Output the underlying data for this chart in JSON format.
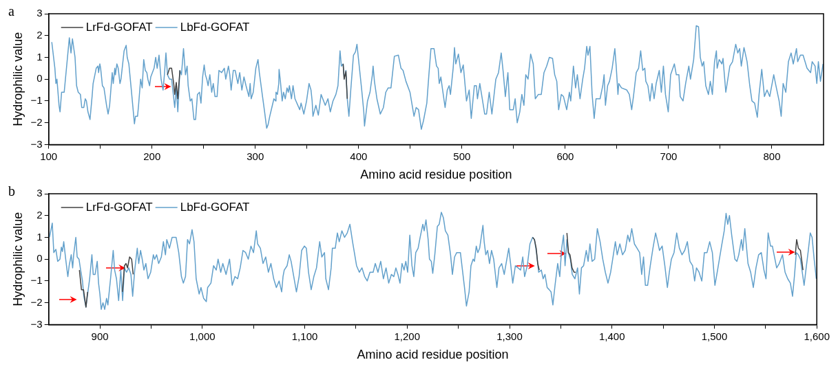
{
  "chart_data": [
    {
      "type": "line",
      "title": "a",
      "xlabel": "Amino acid residue position",
      "ylabel": "Hydrophilic value",
      "xlim": [
        100,
        850
      ],
      "xticks": [
        100,
        {
          "value": 150,
          "label": null
        },
        200,
        {
          "value": 250,
          "label": null
        },
        300,
        {
          "value": 350,
          "label": null
        },
        400,
        {
          "value": 450,
          "label": null
        },
        500,
        {
          "value": 550,
          "label": null
        },
        600,
        {
          "value": 650,
          "label": null
        },
        700,
        {
          "value": 750,
          "label": null
        },
        800
      ],
      "ylim": [
        -3,
        3
      ],
      "yticks": [
        {
          "value": -3,
          "label": "−3"
        },
        {
          "value": -2,
          "label": "−2"
        },
        {
          "value": -1,
          "label": "−1"
        },
        0,
        1,
        2,
        3
      ],
      "grid": false,
      "legend": "top left",
      "marker": "none",
      "series": [
        {
          "name": "LrFd-GOFAT",
          "color": "#404040",
          "x": [
            215,
            217,
            219,
            221,
            222,
            223.5,
            225,
            227,
            300,
            385,
            386,
            387.7,
            389
          ],
          "values": [
            0.2,
            0.5,
            0.5,
            -0.2,
            -0.7,
            -0.15,
            -0.9,
            0.4,
            null,
            0.7,
            0.0,
            0.35,
            -0.9
          ]
        },
        {
          "name": "LbFd-GOFAT",
          "color": "#62a0cb",
          "x": [
            103,
            106,
            107,
            108,
            110,
            111,
            112.5,
            115,
            120,
            121.6,
            123,
            125.5,
            127,
            128.6,
            130.7,
            132,
            134,
            135.4,
            136.5,
            138,
            140,
            142,
            143,
            146,
            147.7,
            148.3,
            149.5,
            150.3,
            152,
            153.5,
            156,
            157.5,
            159,
            161.5,
            162.5,
            164,
            164.6,
            166,
            167.3,
            169,
            170,
            173,
            175,
            176,
            177.6,
            180,
            183,
            184,
            186,
            187,
            189,
            190.5,
            192,
            193.5,
            195,
            196,
            197.7,
            198.8,
            202,
            203.6,
            205,
            206.8,
            208.8,
            210.7,
            212,
            213.5,
            215,
            217,
            219,
            222,
            223.5,
            225,
            227,
            228.5,
            230.5,
            232.4,
            234,
            235,
            237,
            238.6,
            240.6,
            242.2,
            244,
            246,
            247.4,
            249,
            250.5,
            251.7,
            253,
            254.3,
            256,
            257.8,
            259.3,
            261,
            263,
            264.8,
            267.4,
            270,
            271.4,
            274,
            275.3,
            276.6,
            278.7,
            280.5,
            283.1,
            284.9,
            287,
            289,
            291,
            293.8,
            295,
            296,
            298,
            300.5,
            302.6,
            303.9,
            307,
            309,
            311,
            312.3,
            314,
            316,
            318,
            319.8,
            320,
            321.4,
            322.7,
            323,
            324.3,
            326,
            327.3,
            329,
            330.7,
            332,
            333,
            335,
            336.5,
            338.4,
            343,
            344.3,
            347,
            349.6,
            352,
            353.9,
            355,
            355.8,
            358.6,
            361,
            363.7,
            367.7,
            370.3,
            372.6,
            375.2,
            378,
            380,
            382,
            383.3,
            385,
            386,
            387.7,
            389,
            390.6,
            392.4,
            395,
            396.9,
            398.4,
            399.7,
            403,
            405,
            405.7,
            408.6,
            411,
            413.3,
            414,
            415.3,
            417.7,
            421,
            424,
            426.3,
            428.6,
            431.3,
            434.6,
            438.5,
            441,
            443,
            445.8,
            449.7,
            453.6,
            455.7,
            458,
            460.7,
            462.8,
            466,
            468,
            470,
            473,
            475.4,
            477,
            478,
            479.6,
            481,
            483.7,
            485.8,
            487.6,
            488.9,
            491.5,
            492.8,
            494,
            496.6,
            499,
            501.3,
            504.4,
            507,
            509,
            512,
            514,
            515,
            517.3,
            520,
            522,
            523.8,
            526.4,
            529,
            532.8,
            535.4,
            538,
            540,
            542,
            544.5,
            546.3,
            549.7,
            551.5,
            553.5,
            556,
            558,
            560,
            561.8,
            564,
            566.5,
            569,
            571,
            574,
            576.8,
            579.4,
            582,
            584.6,
            587.7,
            589.8,
            591.8,
            593.6,
            596.2,
            598.3,
            601.4,
            604,
            605.3,
            607.9,
            610,
            611.7,
            614.3,
            616.9,
            618.7,
            620.8,
            622,
            623.9,
            626,
            628,
            629.8,
            633.7,
            636.3,
            637.6,
            638.9,
            641,
            642.8,
            645.4,
            648,
            649.3,
            651,
            651.8,
            654.4,
            659.6,
            662,
            664.3,
            666,
            668.7,
            671,
            673,
            675,
            677,
            678,
            680,
            682,
            684,
            686,
            688,
            691,
            693,
            695,
            697,
            699.7,
            702,
            705.6,
            707.5,
            710,
            711.3,
            714,
            716.5,
            719.6,
            721.2,
            724.3,
            726.8,
            729,
            730.7,
            732.5,
            734,
            736,
            738.6,
            740.4,
            742.4,
            744.5,
            746.3,
            747,
            749,
            751.6,
            752.7,
            755.4,
            759.3,
            761.9,
            765,
            767,
            768.8,
            770.4,
            773,
            776,
            778.6,
            780.7,
            783.3,
            785.9,
            787.6,
            790.2,
            792.8,
            795.3,
            797.9,
            801.8,
            803.9,
            807,
            809,
            810.9,
            813.5,
            816,
            818.6,
            820.7,
            823.8,
            825,
            827.6,
            830.2,
            834,
            837.5,
            839,
            841.8,
            843.5,
            845,
            847,
            849.5
          ],
          "values": [
            1.7,
            0.5,
            -0.2,
            0.0,
            -1.2,
            -1.5,
            -0.6,
            -0.6,
            1.9,
            1.2,
            1.85,
            1.0,
            -0.3,
            -0.6,
            -0.7,
            -1.3,
            -1.3,
            -0.9,
            -1.0,
            -1.5,
            -1.85,
            -0.8,
            -0.2,
            0.5,
            0.6,
            0.3,
            0.7,
            0.5,
            -0.3,
            -0.4,
            -1.2,
            -1.6,
            -1.2,
            0.3,
            -0.2,
            0.5,
            0.2,
            0.7,
            0.5,
            -0.2,
            0.0,
            1.3,
            1.55,
            1.0,
            0.7,
            -0.5,
            -2.05,
            -1.7,
            -1.7,
            -1.2,
            0.0,
            -0.4,
            0.9,
            0.4,
            0.3,
            0.0,
            -0.3,
            0.1,
            0.5,
            1.0,
            0.5,
            1.1,
            0.0,
            -0.5,
            0.2,
            1.2,
            0.2,
            0.0,
            0.0,
            -1.3,
            -0.4,
            -1.5,
            0.4,
            0.2,
            1.4,
            0.2,
            0.6,
            -0.3,
            -1.0,
            -0.9,
            -1.85,
            -1.85,
            -0.7,
            -0.6,
            -1.1,
            0.1,
            0.65,
            0.2,
            0.0,
            -0.3,
            0.2,
            -0.6,
            -0.2,
            -0.8,
            -0.8,
            0.4,
            0.3,
            0.5,
            0.0,
            0.6,
            0.2,
            -0.5,
            0.4,
            0.4,
            -0.2,
            0.3,
            -0.5,
            0.1,
            -0.3,
            -0.8,
            -0.2,
            -0.9,
            -0.6,
            0.5,
            0.9,
            0.3,
            -0.8,
            -1.5,
            -2.25,
            -2.1,
            -1.7,
            -1.3,
            -0.9,
            -1.0,
            -0.6,
            -0.7,
            -0.2,
            0.45,
            -0.1,
            -1.0,
            -0.6,
            -0.9,
            -0.4,
            -0.6,
            -0.3,
            -0.9,
            -0.3,
            -0.9,
            -1.4,
            -1.1,
            -1.6,
            -1.0,
            -0.2,
            -0.5,
            -1.0,
            -1.7,
            -1.2,
            -1.65,
            -0.7,
            -1.2,
            -0.9,
            -1.5,
            -1.0,
            -0.7,
            -0.3,
            1.3,
            0.6,
            0.7,
            0.0,
            0.4,
            -0.9,
            -1.7,
            -0.5,
            1.1,
            1.25,
            1.6,
            1.0,
            -0.5,
            -1.5,
            -2.15,
            -1.0,
            -0.6,
            0.2,
            0.6,
            -0.1,
            -0.9,
            -1.6,
            -1.3,
            -0.6,
            -0.4,
            -0.4,
            1.05,
            1.1,
            0.5,
            0.4,
            -0.1,
            -0.6,
            -1.7,
            -1.3,
            -1.4,
            -2.3,
            -1.9,
            -1.1,
            0.2,
            1.4,
            1.4,
            0.6,
            0.5,
            -0.2,
            0.1,
            -0.4,
            -1.3,
            -0.5,
            -0.3,
            -0.7,
            0.5,
            1.45,
            0.7,
            1.15,
            0.3,
            0.65,
            -1.0,
            -0.5,
            -1.8,
            -0.3,
            -0.3,
            -0.9,
            -0.2,
            -1.0,
            -1.6,
            -1.6,
            -0.6,
            -1.6,
            0.0,
            0.3,
            1.2,
            0.3,
            -0.8,
            0.3,
            -1.4,
            -1.4,
            -0.9,
            -2.0,
            -1.5,
            -0.7,
            -1.2,
            0.2,
            0.0,
            1.15,
            0.7,
            -0.9,
            -0.7,
            -0.7,
            0.3,
            0.6,
            1.0,
            0.95,
            0.2,
            -0.1,
            -1.4,
            -0.7,
            -0.8,
            -1.4,
            -0.6,
            -1.0,
            0.6,
            -0.4,
            0.2,
            -0.9,
            0.0,
            0.5,
            1.5,
            1.1,
            1.5,
            -0.7,
            -1.8,
            -0.9,
            -0.9,
            -0.3,
            0.2,
            -1.2,
            -0.3,
            -0.1,
            0.5,
            1.4,
            0.6,
            -0.7,
            -0.2,
            -0.4,
            -0.5,
            -0.7,
            -1.4,
            -0.8,
            0.3,
            0.5,
            1.3,
            0.4,
            0.5,
            -0.1,
            -0.3,
            -1.0,
            -0.2,
            -0.9,
            -0.2,
            0.4,
            -0.6,
            0.6,
            -0.7,
            -1.5,
            0.2,
            0.7,
            0.2,
            0.2,
            -0.8,
            -1.0,
            -0.2,
            0.6,
            0.0,
            0.9,
            2.45,
            2.4,
            1.0,
            0.6,
            0.8,
            -0.3,
            -0.7,
            -0.1,
            -0.7,
            0.8,
            1.3,
            0.5,
            0.9,
            0.7,
            0.95,
            -0.6,
            0.6,
            0.8,
            1.6,
            1.2,
            1.4,
            0.6,
            1.45,
            0.8,
            -0.3,
            -1.0,
            -1.1,
            -1.75,
            -0.7,
            0.45,
            -0.8,
            -0.5,
            -0.8,
            0.2,
            -0.3,
            -1.0,
            -1.7,
            -0.2,
            -0.6,
            0.8,
            1.2,
            0.7,
            1.4,
            0.8,
            1.1,
            1.1,
            0.5,
            0.3,
            0.8,
            0.6,
            -0.2,
            0.8,
            -0.1,
            0.7
          ]
        }
      ]
    },
    {
      "type": "line",
      "title": "b",
      "xlabel": "Amino acid residue position",
      "ylabel": "Hydrophilic value",
      "xlim": [
        850,
        1600
      ],
      "xticks": [
        900,
        {
          "value": 950,
          "label": null
        },
        {
          "value": 1000,
          "label": "1,000"
        },
        {
          "value": 1050,
          "label": null
        },
        {
          "value": 1100,
          "label": "1,100"
        },
        {
          "value": 1150,
          "label": null
        },
        {
          "value": 1200,
          "label": "1,200"
        },
        {
          "value": 1250,
          "label": null
        },
        {
          "value": 1300,
          "label": "1,300"
        },
        {
          "value": 1350,
          "label": null
        },
        {
          "value": 1400,
          "label": "1,400"
        },
        {
          "value": 1450,
          "label": null
        },
        {
          "value": 1500,
          "label": "1,500"
        },
        {
          "value": 1550,
          "label": null
        },
        {
          "value": 1600,
          "label": "1,600"
        }
      ],
      "ylim": [
        -3,
        3
      ],
      "yticks": [
        {
          "value": -3,
          "label": "−3"
        },
        {
          "value": -2,
          "label": "−2"
        },
        {
          "value": -1,
          "label": "−1"
        },
        0,
        1,
        2,
        3
      ],
      "grid": false,
      "legend": "top left",
      "marker": "none",
      "series": [
        {
          "name": "LrFd-GOFAT",
          "color": "#404040",
          "x": [
            880,
            882,
            884,
            886.4,
            888,
            900,
            922,
            924,
            925.5,
            927,
            929,
            931,
            932.5,
            1000,
            1322.5,
            1324.3,
            1326,
            1327.5,
            1329,
            1340,
            1356,
            1357.5,
            1359,
            1361,
            1363,
            1364.5,
            1500,
            1579,
            1580.3,
            1582,
            1584,
            1586.5
          ],
          "values": [
            -0.5,
            -1.4,
            -1.4,
            -2.2,
            -1.5,
            null,
            -1.5,
            -0.3,
            -0.2,
            -0.4,
            0.1,
            0.0,
            -0.7,
            null,
            1.0,
            0.9,
            0.5,
            -0.2,
            -0.5,
            null,
            1.2,
            0.3,
            0.2,
            -0.4,
            -0.6,
            -0.6,
            null,
            0.2,
            0.9,
            0.5,
            0.4,
            -0.5
          ]
        },
        {
          "name": "LbFd-GOFAT",
          "color": "#62a0cb",
          "x": [
            850.8,
            853.5,
            855,
            857,
            858.8,
            861,
            862.4,
            863.4,
            864.7,
            866.6,
            868.7,
            870,
            872,
            873.4,
            874.4,
            876.5,
            877.8,
            879.6,
            881.2,
            883,
            884.3,
            886.4,
            888.3,
            890,
            892.2,
            893.5,
            895.3,
            897.4,
            898.7,
            900,
            901.3,
            903,
            904.7,
            906.5,
            907.8,
            910.4,
            913,
            914.4,
            916.2,
            918.3,
            920.4,
            922.2,
            924,
            926,
            928.2,
            930.3,
            932,
            934,
            936.5,
            937.9,
            939.7,
            941.3,
            943,
            944.9,
            947,
            949.6,
            952.2,
            953.5,
            955.4,
            957.4,
            960,
            962,
            964,
            965.3,
            967.9,
            970.5,
            974.4,
            977,
            979.6,
            981.5,
            983.6,
            985.6,
            987.5,
            990,
            991.9,
            994,
            996.9,
            998.7,
            1001.3,
            1003.9,
            1005.2,
            1008.4,
            1011,
            1013.6,
            1015.4,
            1018,
            1020,
            1023.2,
            1026.6,
            1029.2,
            1031.9,
            1034.5,
            1037,
            1039.7,
            1042.3,
            1044.9,
            1047.5,
            1050,
            1052.7,
            1054,
            1056.7,
            1059.3,
            1061.9,
            1064.5,
            1067,
            1069.7,
            1072.3,
            1075,
            1077.5,
            1078.8,
            1080,
            1082.8,
            1084.9,
            1086.7,
            1089.3,
            1091.9,
            1094.5,
            1097,
            1099.7,
            1101.6,
            1103.7,
            1106.3,
            1108.9,
            1111.5,
            1114.6,
            1116.7,
            1119.3,
            1120.6,
            1123.2,
            1125.8,
            1127,
            1129.8,
            1131.9,
            1133.7,
            1136.3,
            1138.9,
            1141.5,
            1144.1,
            1146.7,
            1150.6,
            1153.3,
            1155.9,
            1158.5,
            1161,
            1163.7,
            1166.8,
            1168.9,
            1171.5,
            1174.2,
            1176.8,
            1179.4,
            1182,
            1184.6,
            1187,
            1189,
            1191,
            1193,
            1195,
            1197,
            1198.7,
            1200.5,
            1202.6,
            1204.7,
            1206.5,
            1208.4,
            1210.7,
            1212.7,
            1215.3,
            1216.6,
            1218.4,
            1220.5,
            1221.8,
            1223.6,
            1225,
            1227,
            1229.5,
            1231.3,
            1233.4,
            1235.4,
            1237.3,
            1239.8,
            1242.4,
            1244.2,
            1246.3,
            1248.4,
            1252,
            1254,
            1256,
            1257.9,
            1260.5,
            1262.3,
            1264.4,
            1265.7,
            1267.5,
            1269,
            1270.8,
            1274,
            1275.2,
            1276.8,
            1278.6,
            1280.4,
            1282.4,
            1284.5,
            1287.6,
            1289.7,
            1292.3,
            1294.8,
            1296.6,
            1299.2,
            1301,
            1303.1,
            1305.7,
            1308.3,
            1310.8,
            1312.9,
            1314.7,
            1317.3,
            1319.9,
            1322.5,
            1324.3,
            1326.3,
            1328.4,
            1331,
            1332.8,
            1334.6,
            1336.7,
            1338.7,
            1340.5,
            1342.3,
            1344.4,
            1347,
            1349,
            1350.9,
            1352.7,
            1354.2,
            1356,
            1357.3,
            1359.4,
            1361.2,
            1363.8,
            1366.4,
            1368.2,
            1370.2,
            1372.3,
            1374.9,
            1376.7,
            1378.5,
            1380.6,
            1383.1,
            1385.7,
            1388.4,
            1391,
            1393.5,
            1396.1,
            1398.7,
            1400.7,
            1403.3,
            1405.1,
            1407.7,
            1410.3,
            1412.9,
            1415.4,
            1417.2,
            1419.3,
            1421.9,
            1424.5,
            1427,
            1429,
            1430.8,
            1432.6,
            1434.8,
            1437.4,
            1440,
            1442.6,
            1444.6,
            1446.4,
            1449,
            1451.6,
            1454.1,
            1456,
            1458,
            1460.6,
            1463.2,
            1465.8,
            1468.4,
            1471,
            1473.6,
            1476.1,
            1478.7,
            1480.7,
            1482.5,
            1485,
            1487.7,
            1490.2,
            1492.8,
            1495.4,
            1498,
            1500.5,
            1503.1,
            1507,
            1509.6,
            1511.4,
            1513,
            1514.7,
            1516.9,
            1520,
            1522,
            1523.8,
            1526.4,
            1527.7,
            1529.7,
            1532.8,
            1535.4,
            1538,
            1540.6,
            1543.2,
            1545.8,
            1548.4,
            1550.4,
            1552.5,
            1554.8,
            1556.6,
            1558.7,
            1560.8,
            1563.3,
            1566.5,
            1569,
            1571.6,
            1574.2,
            1576.3,
            1578.1,
            1580,
            1582,
            1584,
            1585.8,
            1587.6,
            1589.6,
            1591.7,
            1593.6,
            1595.4,
            1597.4,
            1599.5
          ],
          "values": [
            1.0,
            1.65,
            0.3,
            0.45,
            -0.1,
            0.0,
            0.55,
            0.35,
            0.8,
            0.0,
            -0.8,
            -0.3,
            0.2,
            -0.4,
            0.2,
            1.0,
            0.1,
            0.0,
            -0.5,
            -1.0,
            -1.7,
            -2.2,
            -1.5,
            -0.9,
            0.2,
            -0.7,
            -0.7,
            -0.1,
            -1.1,
            -1.6,
            -2.3,
            -2.0,
            -2.3,
            -1.8,
            -2.1,
            -0.9,
            0.4,
            -0.5,
            -0.9,
            -1.9,
            -0.5,
            -1.9,
            -0.4,
            -0.6,
            -0.4,
            -0.7,
            -1.7,
            -0.5,
            0.5,
            -0.2,
            0.4,
            0.0,
            -0.5,
            -0.2,
            -0.9,
            -0.6,
            0.2,
            0.0,
            0.2,
            -0.2,
            0.1,
            0.8,
            0.2,
            0.9,
            0.5,
            1.0,
            1.0,
            0.3,
            -0.8,
            -1.1,
            -0.8,
            0.9,
            0.7,
            1.35,
            0.8,
            -0.9,
            -1.6,
            -1.3,
            -1.8,
            -1.95,
            -1.3,
            -1.1,
            -0.3,
            -0.5,
            0.0,
            -0.6,
            -0.2,
            -0.7,
            0.0,
            -1.2,
            -0.8,
            -0.9,
            -0.4,
            0.4,
            0.3,
            0.0,
            0.6,
            0.3,
            1.3,
            0.7,
            0.5,
            -0.2,
            0.1,
            -0.6,
            -0.2,
            -0.9,
            -1.3,
            -1.0,
            -1.5,
            -0.8,
            -0.5,
            -0.3,
            0.2,
            -0.1,
            -0.8,
            -1.5,
            -0.8,
            0.4,
            0.6,
            0.5,
            -0.6,
            -1.4,
            -0.8,
            -0.4,
            0.8,
            0.1,
            0.3,
            -0.9,
            -1.4,
            -0.4,
            0.5,
            0.5,
            1.2,
            0.8,
            1.3,
            1.0,
            1.2,
            1.6,
            0.8,
            -0.3,
            -0.6,
            -0.4,
            -0.8,
            -1.0,
            -0.6,
            -0.6,
            -0.2,
            -0.6,
            -0.1,
            -0.9,
            -0.4,
            -1.1,
            -0.7,
            -0.8,
            -0.4,
            -0.7,
            -1.1,
            -0.2,
            -0.5,
            -0.1,
            -0.6,
            1.1,
            -0.3,
            -0.8,
            0.3,
            0.5,
            1.0,
            1.6,
            1.3,
            1.8,
            0.9,
            0.0,
            -0.1,
            -0.65,
            0.2,
            1.5,
            1.6,
            2.15,
            1.9,
            1.3,
            1.1,
            0.2,
            -0.7,
            0.1,
            0.3,
            0.3,
            -0.5,
            -1.3,
            -2.15,
            -1.5,
            -0.3,
            0.0,
            -0.1,
            0.6,
            0.3,
            0.5,
            1.55,
            0.8,
            0.2,
            0.4,
            -0.2,
            0.4,
            0.0,
            -1.3,
            -0.4,
            -0.2,
            -0.7,
            -0.2,
            0.5,
            -0.2,
            -1.1,
            -0.3,
            -0.4,
            -0.5,
            0.1,
            -0.8,
            -0.3,
            0.7,
            1.0,
            0.9,
            0.3,
            -0.6,
            -0.5,
            -0.9,
            -0.7,
            -1.3,
            -1.4,
            -1.5,
            -2.1,
            -1.2,
            -0.2,
            -0.8,
            0.5,
            1.1,
            -0.3,
            0.9,
            0.3,
            0.0,
            -0.7,
            -0.9,
            -0.4,
            -1.6,
            -0.4,
            -0.3,
            0.4,
            -0.1,
            0.7,
            -0.1,
            0.0,
            1.4,
            0.8,
            0.0,
            -0.6,
            -1.1,
            -0.6,
            0.0,
            0.8,
            0.2,
            0.7,
            0.2,
            0.4,
            1.1,
            0.8,
            1.4,
            0.7,
            0.5,
            0.3,
            -0.7,
            0.1,
            -1.2,
            -1.2,
            -0.3,
            0.5,
            1.2,
            0.8,
            0.4,
            0.6,
            -0.3,
            -1.3,
            -0.6,
            0.0,
            0.3,
            1.2,
            0.5,
            0.2,
            0.4,
            0.8,
            -0.1,
            -0.3,
            -1.0,
            -0.4,
            -0.6,
            -1.0,
            0.3,
            0.3,
            0.8,
            0.3,
            -1.2,
            -0.5,
            0.6,
            1.3,
            2.1,
            1.6,
            2.0,
            1.1,
            0.0,
            -0.1,
            0.2,
            0.9,
            0.4,
            1.4,
            -0.2,
            -0.6,
            -1.3,
            -0.4,
            0.2,
            0.3,
            -0.5,
            -0.9,
            1.2,
            0.6,
            0.6,
            0.1,
            -0.4,
            -0.2,
            0.2,
            -0.6,
            -0.9,
            -1.1,
            -1.7,
            -0.8,
            0.3,
            0.2,
            0.0,
            -0.6,
            -1.2,
            -0.4,
            0.4,
            1.2,
            1.0,
            0.0,
            -0.9
          ]
        }
      ]
    }
  ]
}
